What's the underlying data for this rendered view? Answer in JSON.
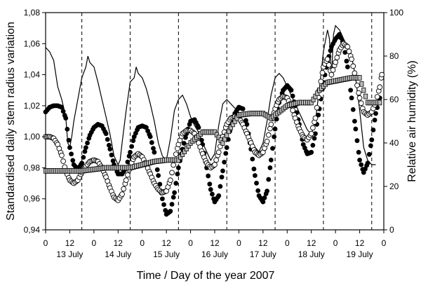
{
  "chart_data": {
    "type": "scatter",
    "title": "",
    "xlabel": "Time / Day of the year 2007",
    "ylabel_left": "Standardised daily stem radius variation",
    "ylabel_right": "Relative air humidity (%)",
    "xlim": [
      0,
      168
    ],
    "ylim_left": [
      0.94,
      1.08
    ],
    "ylim_right": [
      0,
      100
    ],
    "y_ticks_left": [
      "0,94",
      "0,96",
      "0,98",
      "1,00",
      "1,02",
      "1,04",
      "1,06",
      "1,08"
    ],
    "y_ticks_right": [
      "0",
      "20",
      "40",
      "60",
      "80",
      "100"
    ],
    "x_ticks": [
      {
        "x": 0,
        "label": "0"
      },
      {
        "x": 12,
        "label": "12"
      },
      {
        "x": 24,
        "label": "0"
      },
      {
        "x": 36,
        "label": "12"
      },
      {
        "x": 48,
        "label": "0"
      },
      {
        "x": 60,
        "label": "12"
      },
      {
        "x": 72,
        "label": "0"
      },
      {
        "x": 84,
        "label": "12"
      },
      {
        "x": 96,
        "label": "0"
      },
      {
        "x": 108,
        "label": "12"
      },
      {
        "x": 120,
        "label": "0"
      },
      {
        "x": 132,
        "label": "12"
      },
      {
        "x": 144,
        "label": "0"
      },
      {
        "x": 156,
        "label": "12"
      },
      {
        "x": 168,
        "label": "0"
      }
    ],
    "day_labels": [
      {
        "x": 12,
        "label": "13 July"
      },
      {
        "x": 36,
        "label": "14 July"
      },
      {
        "x": 60,
        "label": "15 July"
      },
      {
        "x": 84,
        "label": "16 July"
      },
      {
        "x": 108,
        "label": "17 July"
      },
      {
        "x": 132,
        "label": "18 July"
      },
      {
        "x": 156,
        "label": "19 July"
      }
    ],
    "day_separators": [
      18,
      42,
      66,
      90,
      114,
      138,
      162
    ],
    "grid": false,
    "series": [
      {
        "style": "line",
        "axis": "right",
        "color": "#000000",
        "points": [
          [
            0,
            84
          ],
          [
            2,
            82
          ],
          [
            4,
            78
          ],
          [
            6,
            66
          ],
          [
            8,
            60
          ],
          [
            10,
            52
          ],
          [
            11,
            40
          ],
          [
            12,
            38
          ],
          [
            13,
            43
          ],
          [
            14,
            50
          ],
          [
            16,
            60
          ],
          [
            18,
            70
          ],
          [
            20,
            75
          ],
          [
            21,
            80
          ],
          [
            22,
            77
          ],
          [
            24,
            75
          ],
          [
            26,
            68
          ],
          [
            28,
            60
          ],
          [
            30,
            52
          ],
          [
            32,
            44
          ],
          [
            34,
            34
          ],
          [
            36,
            30
          ],
          [
            37,
            32
          ],
          [
            38,
            40
          ],
          [
            40,
            55
          ],
          [
            42,
            68
          ],
          [
            44,
            70
          ],
          [
            45,
            75
          ],
          [
            46,
            72
          ],
          [
            48,
            70
          ],
          [
            50,
            65
          ],
          [
            52,
            58
          ],
          [
            54,
            50
          ],
          [
            56,
            40
          ],
          [
            58,
            34
          ],
          [
            60,
            32
          ],
          [
            62,
            42
          ],
          [
            64,
            55
          ],
          [
            66,
            60
          ],
          [
            68,
            62
          ],
          [
            70,
            58
          ],
          [
            72,
            52
          ],
          [
            74,
            48
          ],
          [
            76,
            45
          ],
          [
            78,
            40
          ],
          [
            80,
            36
          ],
          [
            82,
            32
          ],
          [
            84,
            35
          ],
          [
            86,
            48
          ],
          [
            88,
            58
          ],
          [
            90,
            60
          ],
          [
            92,
            58
          ],
          [
            94,
            56
          ],
          [
            96,
            54
          ],
          [
            98,
            50
          ],
          [
            100,
            46
          ],
          [
            102,
            42
          ],
          [
            104,
            38
          ],
          [
            106,
            36
          ],
          [
            108,
            40
          ],
          [
            110,
            50
          ],
          [
            112,
            62
          ],
          [
            114,
            70
          ],
          [
            116,
            72
          ],
          [
            118,
            70
          ],
          [
            120,
            66
          ],
          [
            122,
            62
          ],
          [
            124,
            58
          ],
          [
            126,
            54
          ],
          [
            128,
            50
          ],
          [
            130,
            46
          ],
          [
            132,
            44
          ],
          [
            134,
            50
          ],
          [
            136,
            65
          ],
          [
            138,
            82
          ],
          [
            140,
            92
          ],
          [
            141,
            88
          ],
          [
            142,
            70
          ],
          [
            143,
            90
          ],
          [
            144,
            94
          ],
          [
            146,
            92
          ],
          [
            148,
            88
          ],
          [
            150,
            84
          ],
          [
            152,
            80
          ],
          [
            154,
            70
          ],
          [
            156,
            55
          ],
          [
            158,
            38
          ],
          [
            160,
            32
          ],
          [
            162,
            30
          ],
          [
            164,
            30
          ]
        ]
      },
      {
        "style": "filled-circle",
        "axis": "left",
        "color": "#000000",
        "points": [
          [
            0,
            1.016
          ],
          [
            2,
            1.019
          ],
          [
            4,
            1.02
          ],
          [
            6,
            1.02
          ],
          [
            8,
            1.019
          ],
          [
            10,
            1.012
          ],
          [
            12,
            0.993
          ],
          [
            14,
            0.982
          ],
          [
            16,
            0.979
          ],
          [
            18,
            0.983
          ],
          [
            20,
            0.993
          ],
          [
            22,
            1.001
          ],
          [
            24,
            1.006
          ],
          [
            26,
            1.008
          ],
          [
            28,
            1.007
          ],
          [
            30,
            1.002
          ],
          [
            32,
            0.992
          ],
          [
            34,
            0.982
          ],
          [
            36,
            0.976
          ],
          [
            38,
            0.976
          ],
          [
            40,
            0.98
          ],
          [
            42,
            0.99
          ],
          [
            44,
            1.0
          ],
          [
            46,
            1.006
          ],
          [
            48,
            1.007
          ],
          [
            50,
            1.006
          ],
          [
            52,
            1.0
          ],
          [
            54,
            0.99
          ],
          [
            56,
            0.975
          ],
          [
            58,
            0.96
          ],
          [
            60,
            0.95
          ],
          [
            62,
            0.952
          ],
          [
            64,
            0.964
          ],
          [
            66,
            0.98
          ],
          [
            68,
            0.992
          ],
          [
            70,
            1.002
          ],
          [
            72,
            1.01
          ],
          [
            74,
            1.011
          ],
          [
            76,
            1.006
          ],
          [
            78,
            0.995
          ],
          [
            80,
            0.98
          ],
          [
            82,
            0.966
          ],
          [
            84,
            0.958
          ],
          [
            86,
            0.962
          ],
          [
            88,
            0.978
          ],
          [
            90,
            0.993
          ],
          [
            92,
            1.007
          ],
          [
            94,
            1.015
          ],
          [
            96,
            1.019
          ],
          [
            98,
            1.018
          ],
          [
            100,
            1.008
          ],
          [
            102,
            0.992
          ],
          [
            104,
            0.975
          ],
          [
            106,
            0.962
          ],
          [
            108,
            0.958
          ],
          [
            110,
            0.965
          ],
          [
            112,
            0.985
          ],
          [
            114,
            1.005
          ],
          [
            116,
            1.022
          ],
          [
            118,
            1.03
          ],
          [
            120,
            1.033
          ],
          [
            122,
            1.03
          ],
          [
            124,
            1.02
          ],
          [
            126,
            1.008
          ],
          [
            128,
            0.995
          ],
          [
            130,
            0.989
          ],
          [
            132,
            0.99
          ],
          [
            134,
            1.002
          ],
          [
            136,
            1.018
          ],
          [
            138,
            1.035
          ],
          [
            140,
            1.048
          ],
          [
            142,
            1.058
          ],
          [
            144,
            1.063
          ],
          [
            146,
            1.066
          ],
          [
            148,
            1.06
          ],
          [
            150,
            1.045
          ],
          [
            152,
            1.025
          ],
          [
            154,
            1.005
          ],
          [
            156,
            0.985
          ],
          [
            158,
            0.977
          ],
          [
            160,
            0.983
          ],
          [
            162,
            0.998
          ],
          [
            164,
            1.015
          ],
          [
            166,
            1.025
          ]
        ]
      },
      {
        "style": "open-circle",
        "axis": "left",
        "color": "#000000",
        "points": [
          [
            0,
            1.0
          ],
          [
            2,
            1.0
          ],
          [
            4,
            0.999
          ],
          [
            6,
            0.995
          ],
          [
            8,
            0.988
          ],
          [
            10,
            0.978
          ],
          [
            12,
            0.972
          ],
          [
            14,
            0.97
          ],
          [
            16,
            0.972
          ],
          [
            18,
            0.977
          ],
          [
            20,
            0.981
          ],
          [
            22,
            0.984
          ],
          [
            24,
            0.985
          ],
          [
            26,
            0.984
          ],
          [
            28,
            0.98
          ],
          [
            30,
            0.974
          ],
          [
            32,
            0.967
          ],
          [
            34,
            0.961
          ],
          [
            36,
            0.959
          ],
          [
            38,
            0.963
          ],
          [
            40,
            0.972
          ],
          [
            42,
            0.981
          ],
          [
            44,
            0.987
          ],
          [
            46,
            0.989
          ],
          [
            48,
            0.987
          ],
          [
            50,
            0.982
          ],
          [
            52,
            0.976
          ],
          [
            54,
            0.97
          ],
          [
            56,
            0.966
          ],
          [
            58,
            0.964
          ],
          [
            60,
            0.965
          ],
          [
            62,
            0.972
          ],
          [
            64,
            0.985
          ],
          [
            66,
            0.995
          ],
          [
            68,
            1.002
          ],
          [
            70,
            1.004
          ],
          [
            72,
            1.004
          ],
          [
            74,
            1.002
          ],
          [
            76,
            0.996
          ],
          [
            78,
            0.989
          ],
          [
            80,
            0.983
          ],
          [
            82,
            0.98
          ],
          [
            84,
            0.982
          ],
          [
            86,
            0.99
          ],
          [
            88,
            1.0
          ],
          [
            90,
            1.008
          ],
          [
            92,
            1.012
          ],
          [
            94,
            1.013
          ],
          [
            96,
            1.012
          ],
          [
            98,
            1.008
          ],
          [
            100,
            1.002
          ],
          [
            102,
            0.996
          ],
          [
            104,
            0.99
          ],
          [
            106,
            0.988
          ],
          [
            108,
            0.99
          ],
          [
            110,
            0.997
          ],
          [
            112,
            1.008
          ],
          [
            114,
            1.018
          ],
          [
            116,
            1.024
          ],
          [
            118,
            1.026
          ],
          [
            120,
            1.025
          ],
          [
            122,
            1.02
          ],
          [
            124,
            1.012
          ],
          [
            126,
            1.005
          ],
          [
            128,
            1.0
          ],
          [
            130,
            0.998
          ],
          [
            132,
            1.002
          ],
          [
            134,
            1.012
          ],
          [
            136,
            1.03
          ],
          [
            138,
            1.045
          ],
          [
            140,
            1.05
          ],
          [
            142,
            1.04
          ],
          [
            144,
            1.048
          ],
          [
            146,
            1.056
          ],
          [
            148,
            1.06
          ],
          [
            150,
            1.058
          ],
          [
            152,
            1.05
          ],
          [
            154,
            1.038
          ],
          [
            156,
            1.025
          ],
          [
            158,
            1.016
          ],
          [
            160,
            1.014
          ],
          [
            162,
            1.016
          ],
          [
            164,
            1.022
          ],
          [
            166,
            1.032
          ],
          [
            167,
            1.04
          ]
        ]
      },
      {
        "style": "hatched-marker",
        "axis": "left",
        "color": "#000000",
        "points": [
          [
            0,
            0.978
          ],
          [
            6,
            0.978
          ],
          [
            12,
            0.978
          ],
          [
            18,
            0.978
          ],
          [
            24,
            0.979
          ],
          [
            30,
            0.98
          ],
          [
            36,
            0.98
          ],
          [
            42,
            0.98
          ],
          [
            48,
            0.982
          ],
          [
            54,
            0.984
          ],
          [
            60,
            0.985
          ],
          [
            66,
            0.985
          ],
          [
            72,
            0.996
          ],
          [
            78,
            1.003
          ],
          [
            84,
            1.003
          ],
          [
            88,
            0.996
          ],
          [
            92,
            1.006
          ],
          [
            96,
            1.014
          ],
          [
            102,
            1.015
          ],
          [
            108,
            1.015
          ],
          [
            112,
            1.012
          ],
          [
            116,
            1.016
          ],
          [
            120,
            1.02
          ],
          [
            126,
            1.022
          ],
          [
            132,
            1.022
          ],
          [
            136,
            1.03
          ],
          [
            140,
            1.035
          ],
          [
            144,
            1.036
          ],
          [
            148,
            1.037
          ],
          [
            152,
            1.038
          ],
          [
            156,
            1.038
          ],
          [
            160,
            1.022
          ],
          [
            164,
            1.022
          ],
          [
            166,
            1.022
          ]
        ]
      }
    ]
  }
}
